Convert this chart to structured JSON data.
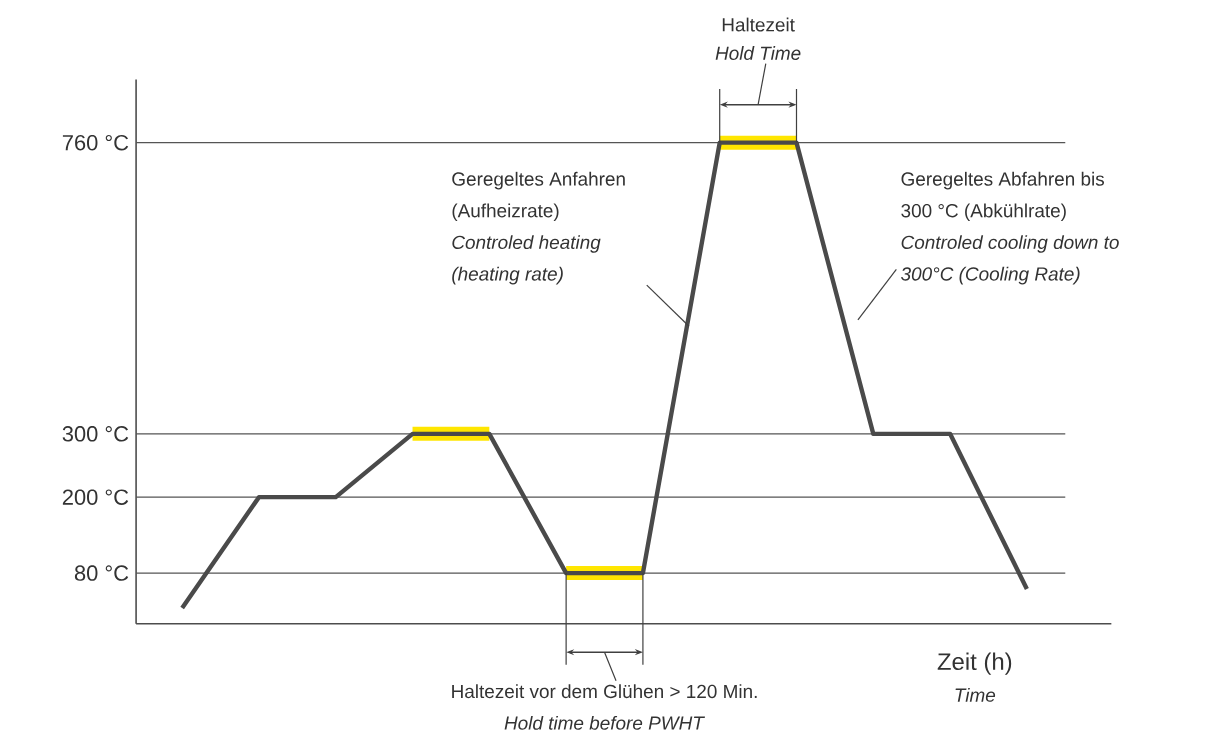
{
  "chart_data": {
    "type": "line",
    "xlabel": "Zeit (h)",
    "categories": [
      null,
      null,
      null,
      null,
      null,
      null,
      null,
      null,
      null,
      null,
      null,
      null
    ],
    "series": [
      {
        "color": "#ffe600",
        "values": [
          null,
          null,
          null,
          300,
          300,
          null,
          null,
          null,
          null,
          null,
          null,
          null
        ]
      },
      {
        "color": "#ffe600",
        "values": [
          null,
          null,
          null,
          null,
          null,
          80,
          80,
          null,
          null,
          null,
          null,
          null
        ]
      },
      {
        "color": "#ffe600",
        "values": [
          null,
          null,
          null,
          null,
          null,
          null,
          null,
          760,
          760,
          null,
          null,
          null
        ]
      },
      {
        "color": "#4a4a4a",
        "values": [
          25,
          200,
          200,
          300,
          300,
          80,
          80,
          760,
          760,
          300,
          300,
          55
        ]
      }
    ],
    "ylim": [
      0,
      860
    ],
    "yticks": [
      {
        "value": 80,
        "label": "80 °C"
      },
      {
        "value": 200,
        "label": "200 °C"
      },
      {
        "value": 300,
        "label": "300 °C"
      },
      {
        "value": 760,
        "label": "760 °C"
      }
    ],
    "tick_labels": "y",
    "ref_lines": [
      {
        "axis": "y",
        "value": 80,
        "color": "#555555"
      },
      {
        "axis": "y",
        "value": 200,
        "color": "#555555"
      },
      {
        "axis": "y",
        "value": 300,
        "color": "#555555"
      },
      {
        "axis": "y",
        "value": 760,
        "color": "#555555"
      }
    ],
    "annotations": [
      "*Time*",
      "Haltezeit",
      "*Hold Time*",
      "Geregeltes  Anfahren",
      "(Aufheizrate)",
      "*Controled heating*",
      "*(heating rate)*",
      "Geregeltes Abfahren  bis",
      "300 °C (Abkühlrate)",
      "*Controled cooling down to*",
      "*300°C (Cooling Rate)*",
      "Haltezeit vor dem Glühen > 120 Min.",
      "*Hold time before PWHT*"
    ]
  }
}
